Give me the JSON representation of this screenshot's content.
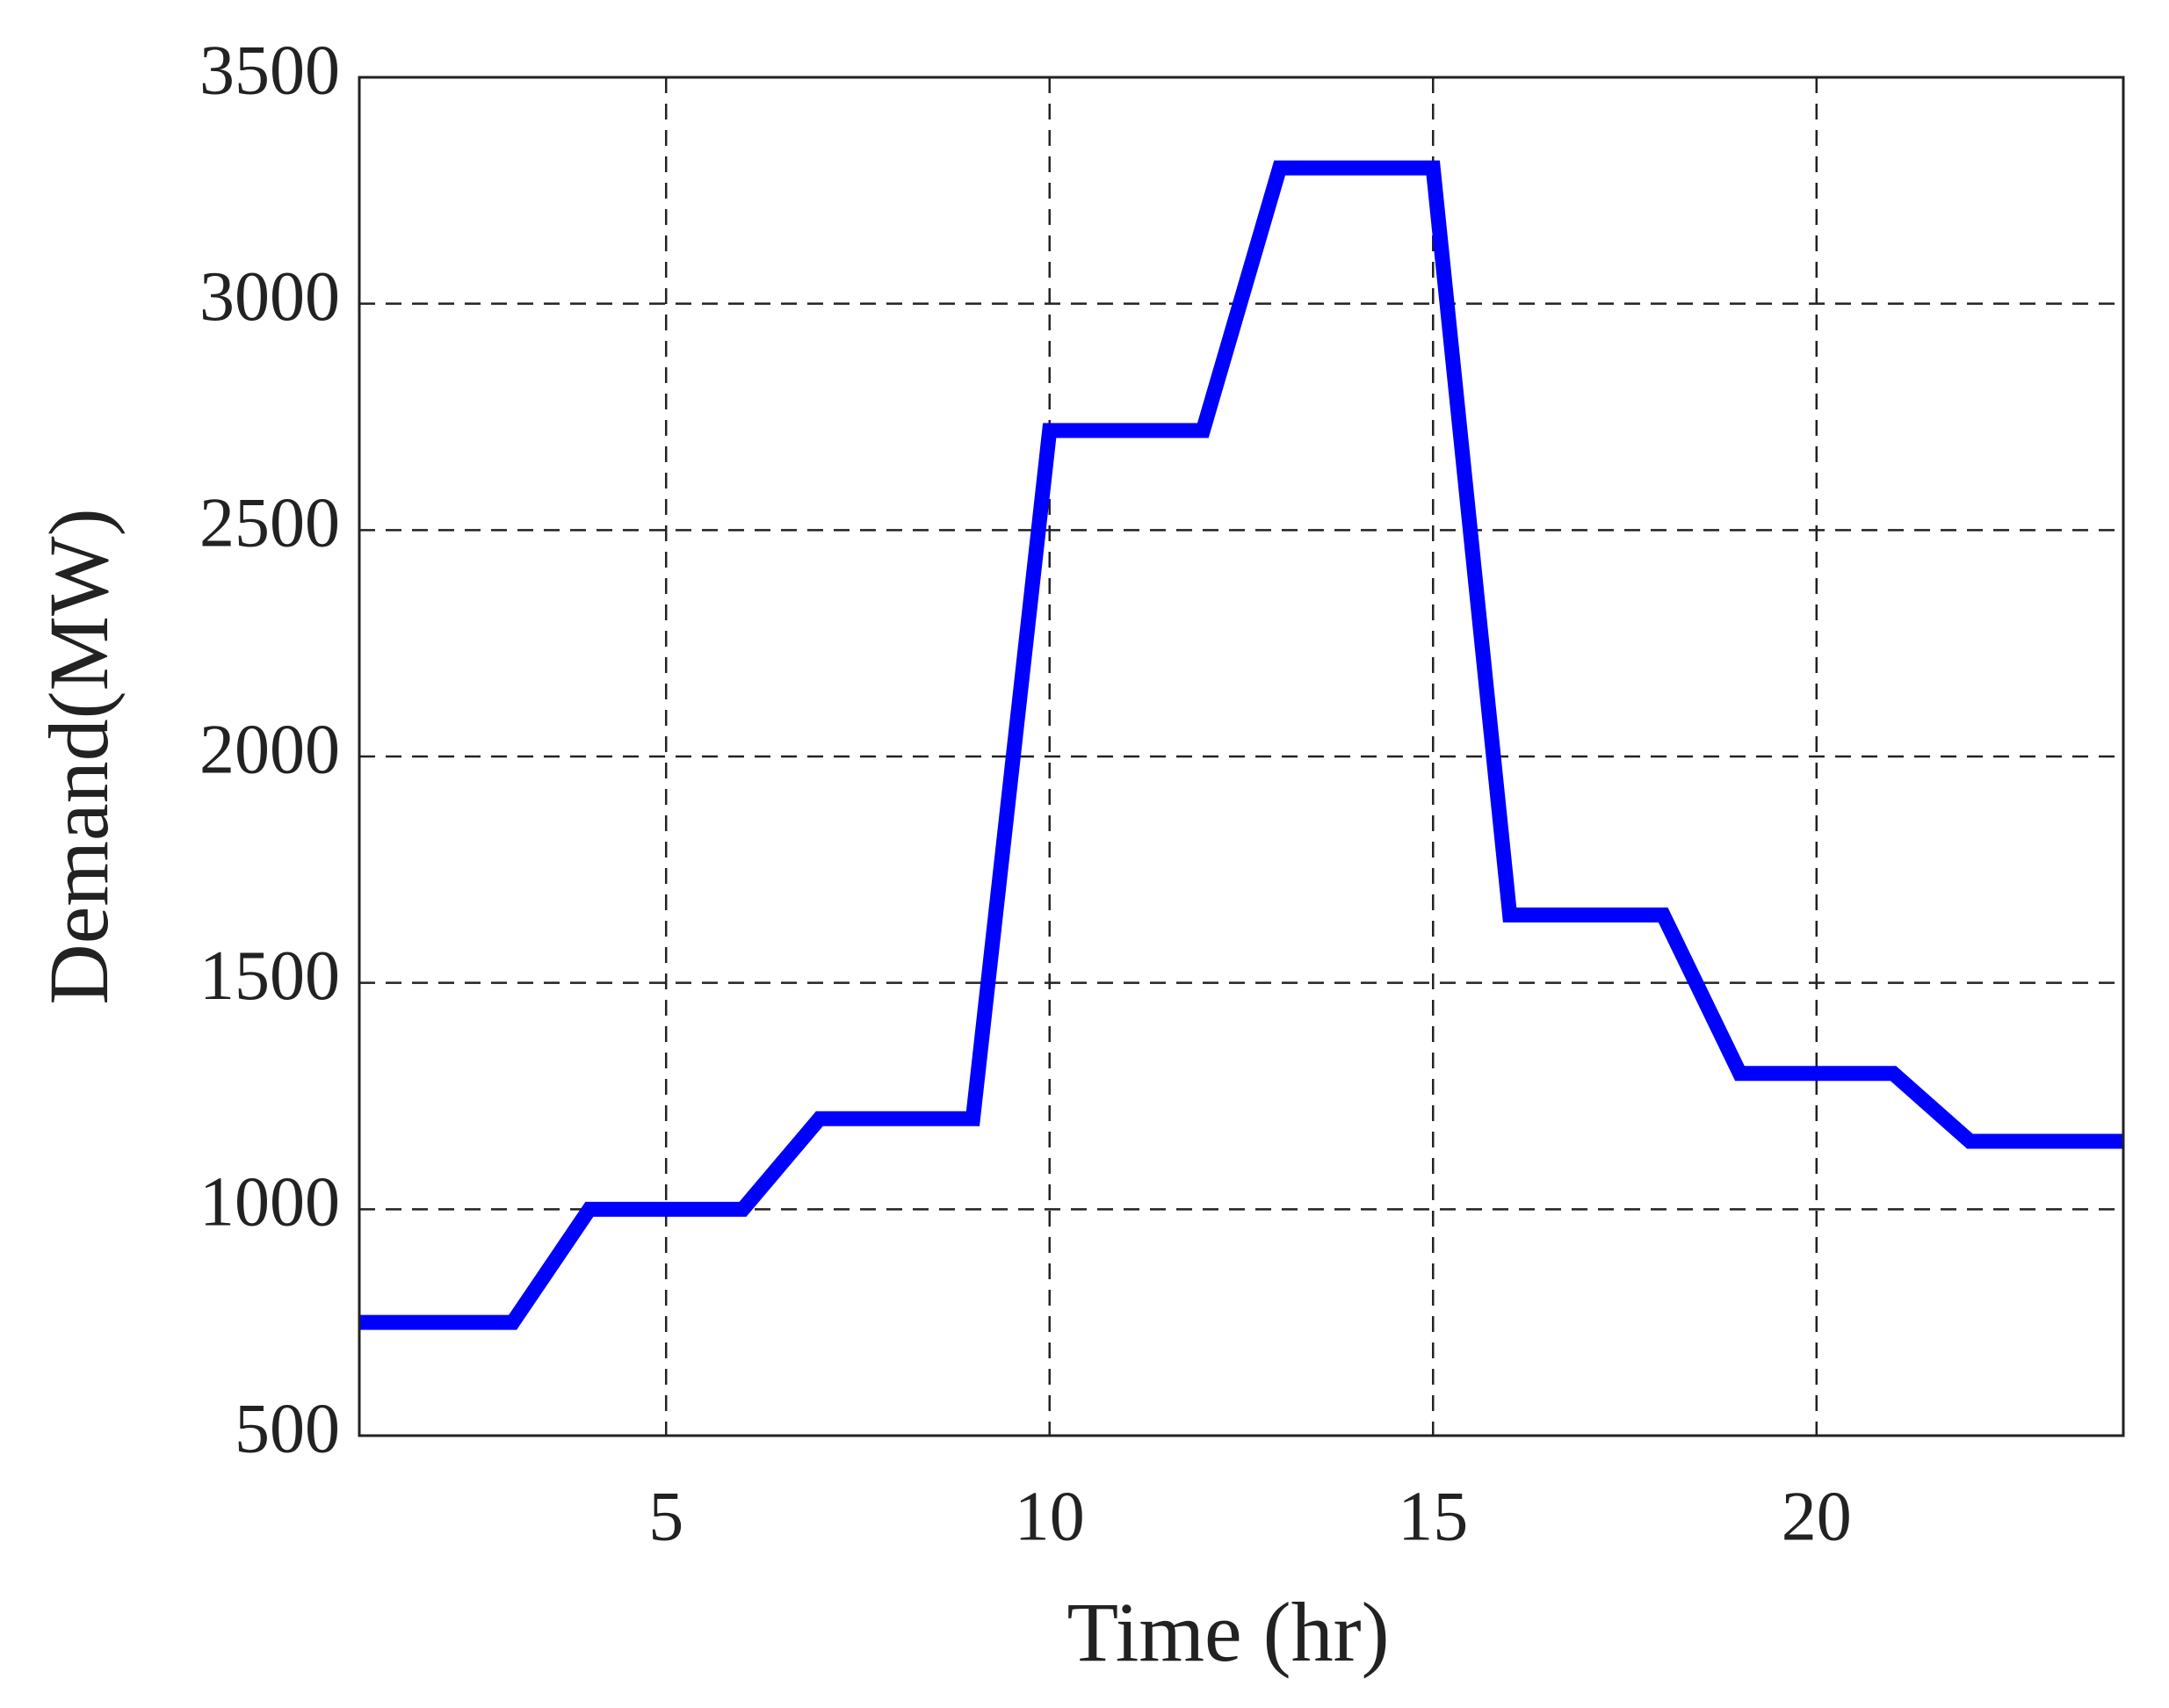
{
  "chart_data": {
    "type": "line",
    "x_label": "Time (hr)",
    "y_label": "Demand(MW)",
    "x": [
      1,
      2,
      3,
      4,
      5,
      6,
      7,
      8,
      9,
      10,
      11,
      12,
      13,
      14,
      15,
      16,
      17,
      18,
      19,
      20,
      21,
      22,
      23,
      24
    ],
    "series": [
      {
        "color": "#0000ff",
        "values": [
          750,
          750,
          750,
          1000,
          1000,
          1000,
          1200,
          1200,
          1200,
          2720,
          2720,
          2720,
          3300,
          3300,
          3300,
          1650,
          1650,
          1650,
          1300,
          1300,
          1300,
          1150,
          1150,
          1150
        ]
      }
    ],
    "xlim": [
      1,
      24
    ],
    "ylim": [
      500,
      3500
    ],
    "xticks": [
      5,
      10,
      15,
      20
    ],
    "yticks": [
      500,
      1000,
      1500,
      2000,
      2500,
      3000,
      3500
    ],
    "grid": true
  }
}
